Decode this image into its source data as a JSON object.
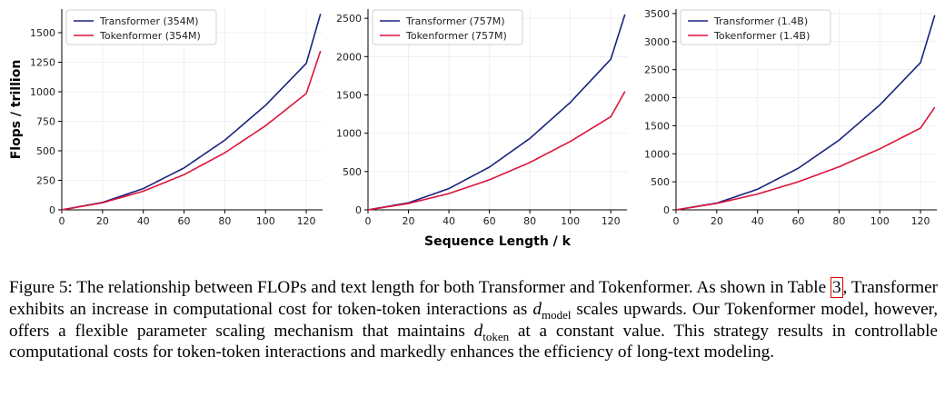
{
  "chart_data": [
    {
      "type": "line",
      "title": "",
      "ylabel": "Flops / trillion",
      "xlabel": "",
      "xlim": [
        0,
        128
      ],
      "ylim": [
        0,
        1700
      ],
      "xticks": [
        0,
        20,
        40,
        60,
        80,
        100,
        120
      ],
      "yticks": [
        0,
        250,
        500,
        750,
        1000,
        1250,
        1500
      ],
      "grid": true,
      "legend_position": "top-left",
      "x": [
        0,
        20,
        40,
        60,
        80,
        100,
        120,
        127
      ],
      "series": [
        {
          "name": "Transformer (354M)",
          "color": "#1a237e",
          "values": [
            0,
            63,
            180,
            355,
            590,
            885,
            1240,
            1660
          ]
        },
        {
          "name": "Tokenformer (354M)",
          "color": "#dc143c",
          "values": [
            0,
            60,
            158,
            298,
            483,
            712,
            985,
            1345
          ]
        }
      ]
    },
    {
      "type": "line",
      "title": "",
      "ylabel": "",
      "xlabel": "Sequence Length / k",
      "xlim": [
        0,
        128
      ],
      "ylim": [
        0,
        2620
      ],
      "xticks": [
        0,
        20,
        40,
        60,
        80,
        100,
        120
      ],
      "yticks": [
        0,
        500,
        1000,
        1500,
        2000,
        2500
      ],
      "grid": true,
      "legend_position": "top-left",
      "x": [
        0,
        20,
        40,
        60,
        80,
        100,
        120,
        127
      ],
      "series": [
        {
          "name": "Transformer (757M)",
          "color": "#1a237e",
          "values": [
            0,
            92,
            278,
            558,
            932,
            1402,
            1966,
            2550
          ]
        },
        {
          "name": "Tokenformer (757M)",
          "color": "#dc143c",
          "values": [
            0,
            83,
            213,
            392,
            618,
            893,
            1215,
            1545
          ]
        }
      ]
    },
    {
      "type": "line",
      "title": "",
      "ylabel": "",
      "xlabel": "",
      "xlim": [
        0,
        128
      ],
      "ylim": [
        0,
        3580
      ],
      "xticks": [
        0,
        20,
        40,
        60,
        80,
        100,
        120
      ],
      "yticks": [
        0,
        500,
        1000,
        1500,
        2000,
        2500,
        3000,
        3500
      ],
      "grid": true,
      "legend_position": "top-left",
      "x": [
        0,
        20,
        40,
        60,
        80,
        100,
        120,
        127
      ],
      "series": [
        {
          "name": "Transformer (1.4B)",
          "color": "#1a237e",
          "values": [
            0,
            120,
            368,
            742,
            1242,
            1870,
            2625,
            3470
          ]
        },
        {
          "name": "Tokenformer (1.4B)",
          "color": "#dc143c",
          "values": [
            0,
            115,
            282,
            500,
            768,
            1088,
            1458,
            1830
          ]
        }
      ]
    }
  ],
  "caption": {
    "lead": "Figure 5: The relationship between FLOPs and text length for both Transformer and Tokenformer. As shown in Table ",
    "table_ref": "3",
    "part2": ", Transformer exhibits an increase in computational cost for token-token interactions as ",
    "d1": "d",
    "sub1": "model",
    "part3": " scales upwards. Our Tokenformer model, however, offers a flexible parameter scaling mechanism that maintains ",
    "d2": "d",
    "sub2": "token",
    "part4": " at a constant value. This strategy results in controllable computational costs for token-token interactions and markedly enhances the efficiency of long-text modeling."
  }
}
